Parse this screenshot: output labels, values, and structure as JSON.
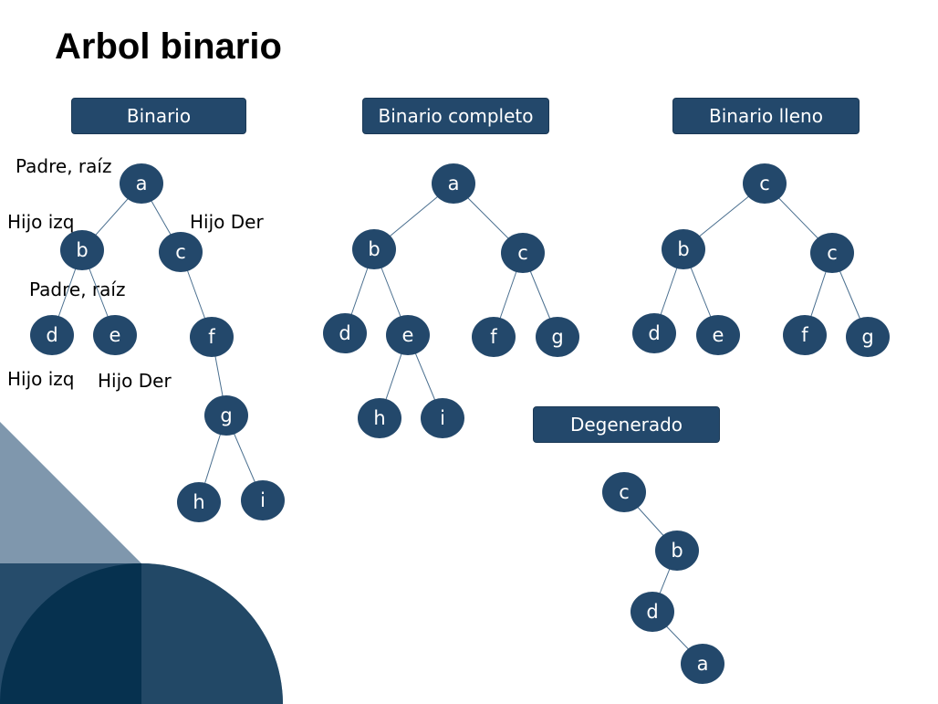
{
  "title": "Arbol binario",
  "sections": {
    "binario": "Binario",
    "completo": "Binario completo",
    "lleno": "Binario lleno",
    "degenerado": "Degenerado"
  },
  "annotations": {
    "padre_raiz_1": "Padre, raíz",
    "hijo_izq_1": "Hijo izq",
    "hijo_der_1": "Hijo Der",
    "padre_raiz_2": "Padre, raíz",
    "hijo_izq_2": "Hijo izq",
    "hijo_der_2": "Hijo Der"
  },
  "trees": {
    "binario": {
      "nodes": [
        "a",
        "b",
        "c",
        "d",
        "e",
        "f",
        "g",
        "h",
        "i"
      ],
      "edges": [
        [
          "a",
          "b"
        ],
        [
          "a",
          "c"
        ],
        [
          "b",
          "d"
        ],
        [
          "b",
          "e"
        ],
        [
          "c",
          "f"
        ],
        [
          "f",
          "g"
        ],
        [
          "g",
          "h"
        ],
        [
          "g",
          "i"
        ]
      ]
    },
    "completo": {
      "nodes": [
        "a",
        "b",
        "c",
        "d",
        "e",
        "f",
        "g",
        "h",
        "i"
      ],
      "edges": [
        [
          "a",
          "b"
        ],
        [
          "a",
          "c"
        ],
        [
          "b",
          "d"
        ],
        [
          "b",
          "e"
        ],
        [
          "c",
          "f"
        ],
        [
          "c",
          "g"
        ],
        [
          "e",
          "h"
        ],
        [
          "e",
          "i"
        ]
      ]
    },
    "lleno": {
      "nodes": [
        "c",
        "b",
        "c",
        "d",
        "e",
        "f",
        "g"
      ],
      "edges": [
        [
          "c",
          "b"
        ],
        [
          "c",
          "c"
        ],
        [
          "b",
          "d"
        ],
        [
          "b",
          "e"
        ],
        [
          "c",
          "f"
        ],
        [
          "c",
          "g"
        ]
      ]
    },
    "degenerado": {
      "nodes": [
        "c",
        "b",
        "d",
        "a"
      ],
      "edges": [
        [
          "c",
          "b"
        ],
        [
          "b",
          "d"
        ],
        [
          "d",
          "a"
        ]
      ]
    }
  },
  "colors": {
    "node": "#23486b",
    "accent_light": "#7f97ad",
    "accent_mid": "#264c6b",
    "accent_dark": "#06314f"
  }
}
